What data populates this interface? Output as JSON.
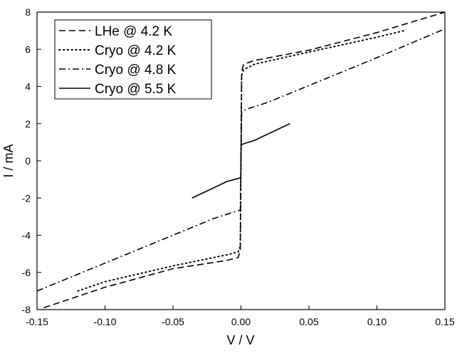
{
  "chart_data": {
    "type": "line",
    "title": "",
    "xlabel": "V / V",
    "ylabel": "I / mA",
    "xlim": [
      -0.15,
      0.15
    ],
    "ylim": [
      -8,
      8
    ],
    "x_ticks": [
      -0.15,
      -0.1,
      -0.05,
      0.0,
      0.05,
      0.1,
      0.15
    ],
    "x_tick_labels": [
      "-0.15",
      "-0.10",
      "-0.05",
      "0.00",
      "0.05",
      "0.10",
      "0.15"
    ],
    "y_ticks": [
      -8,
      -6,
      -4,
      -2,
      0,
      2,
      4,
      6,
      8
    ],
    "y_tick_labels": [
      "-8",
      "-6",
      "-4",
      "-2",
      "0",
      "2",
      "4",
      "6",
      "8"
    ],
    "grid": false,
    "legend_position": "top-left",
    "series": [
      {
        "name": "LHe @ 4.2 K",
        "line_style": "dashed",
        "color": "#000000",
        "x": [
          -0.145,
          -0.1,
          -0.05,
          -0.01,
          -0.002,
          -0.0005,
          0.0,
          0.0005,
          0.002,
          0.01,
          0.05,
          0.1,
          0.15
        ],
        "y": [
          -7.9,
          -6.8,
          -5.8,
          -5.35,
          -5.2,
          -4.8,
          0.0,
          4.8,
          5.2,
          5.4,
          5.95,
          6.9,
          8.0
        ]
      },
      {
        "name": "Cryo @ 4.2 K",
        "line_style": "dotted",
        "color": "#000000",
        "x": [
          -0.12,
          -0.1,
          -0.05,
          -0.01,
          -0.002,
          -0.0005,
          0.0,
          0.0005,
          0.002,
          0.01,
          0.05,
          0.1,
          0.12
        ],
        "y": [
          -7.0,
          -6.5,
          -5.65,
          -5.05,
          -4.9,
          -4.6,
          0.0,
          4.6,
          4.9,
          5.2,
          5.85,
          6.65,
          7.0
        ]
      },
      {
        "name": "Cryo @ 4.8 K",
        "line_style": "dashdot",
        "color": "#000000",
        "x": [
          -0.15,
          -0.1,
          -0.05,
          -0.02,
          -0.005,
          -0.0005,
          0.0,
          0.0005,
          0.005,
          0.02,
          0.05,
          0.1,
          0.15
        ],
        "y": [
          -7.0,
          -5.5,
          -4.0,
          -3.1,
          -2.75,
          -2.65,
          0.0,
          2.65,
          2.8,
          3.15,
          4.05,
          5.55,
          7.1
        ]
      },
      {
        "name": "Cryo @ 5.5 K",
        "line_style": "solid",
        "color": "#000000",
        "x": [
          -0.036,
          -0.02,
          -0.01,
          -0.002,
          -0.0002,
          0.0,
          0.0002,
          0.002,
          0.01,
          0.02,
          0.036
        ],
        "y": [
          -2.0,
          -1.45,
          -1.1,
          -0.95,
          -0.9,
          0.0,
          0.85,
          0.92,
          1.1,
          1.45,
          2.0
        ]
      }
    ]
  }
}
